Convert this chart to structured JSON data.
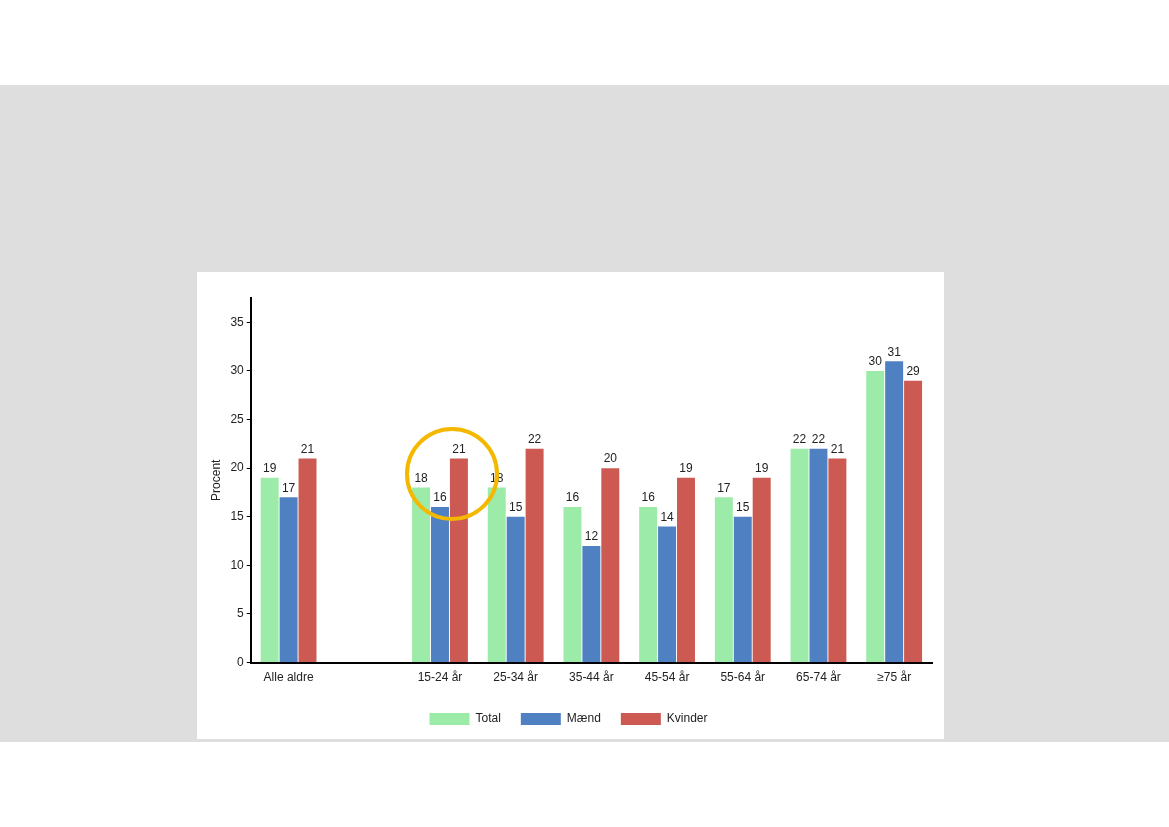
{
  "chart_data": {
    "type": "bar",
    "ylabel": "Procent",
    "categories": [
      "Alle aldre",
      null,
      "15-24 år",
      "25-34 år",
      "35-44 år",
      "45-54 år",
      "55-64 år",
      "65-74 år",
      "≥75 år"
    ],
    "series": [
      {
        "name": "Total",
        "color": "#9deba8",
        "values": [
          19,
          null,
          18,
          18,
          16,
          16,
          17,
          22,
          30
        ]
      },
      {
        "name": "Mænd",
        "color": "#4f81c2",
        "values": [
          17,
          null,
          16,
          15,
          12,
          14,
          15,
          22,
          31
        ]
      },
      {
        "name": "Kvinder",
        "color": "#cc5a52",
        "values": [
          21,
          null,
          21,
          22,
          20,
          19,
          19,
          21,
          29
        ]
      }
    ],
    "ylim": [
      0,
      37.5
    ],
    "yticks": [
      0,
      5,
      10,
      15,
      20,
      25,
      30,
      35
    ],
    "grid": false,
    "legend": "bottom",
    "data_labels": true
  }
}
